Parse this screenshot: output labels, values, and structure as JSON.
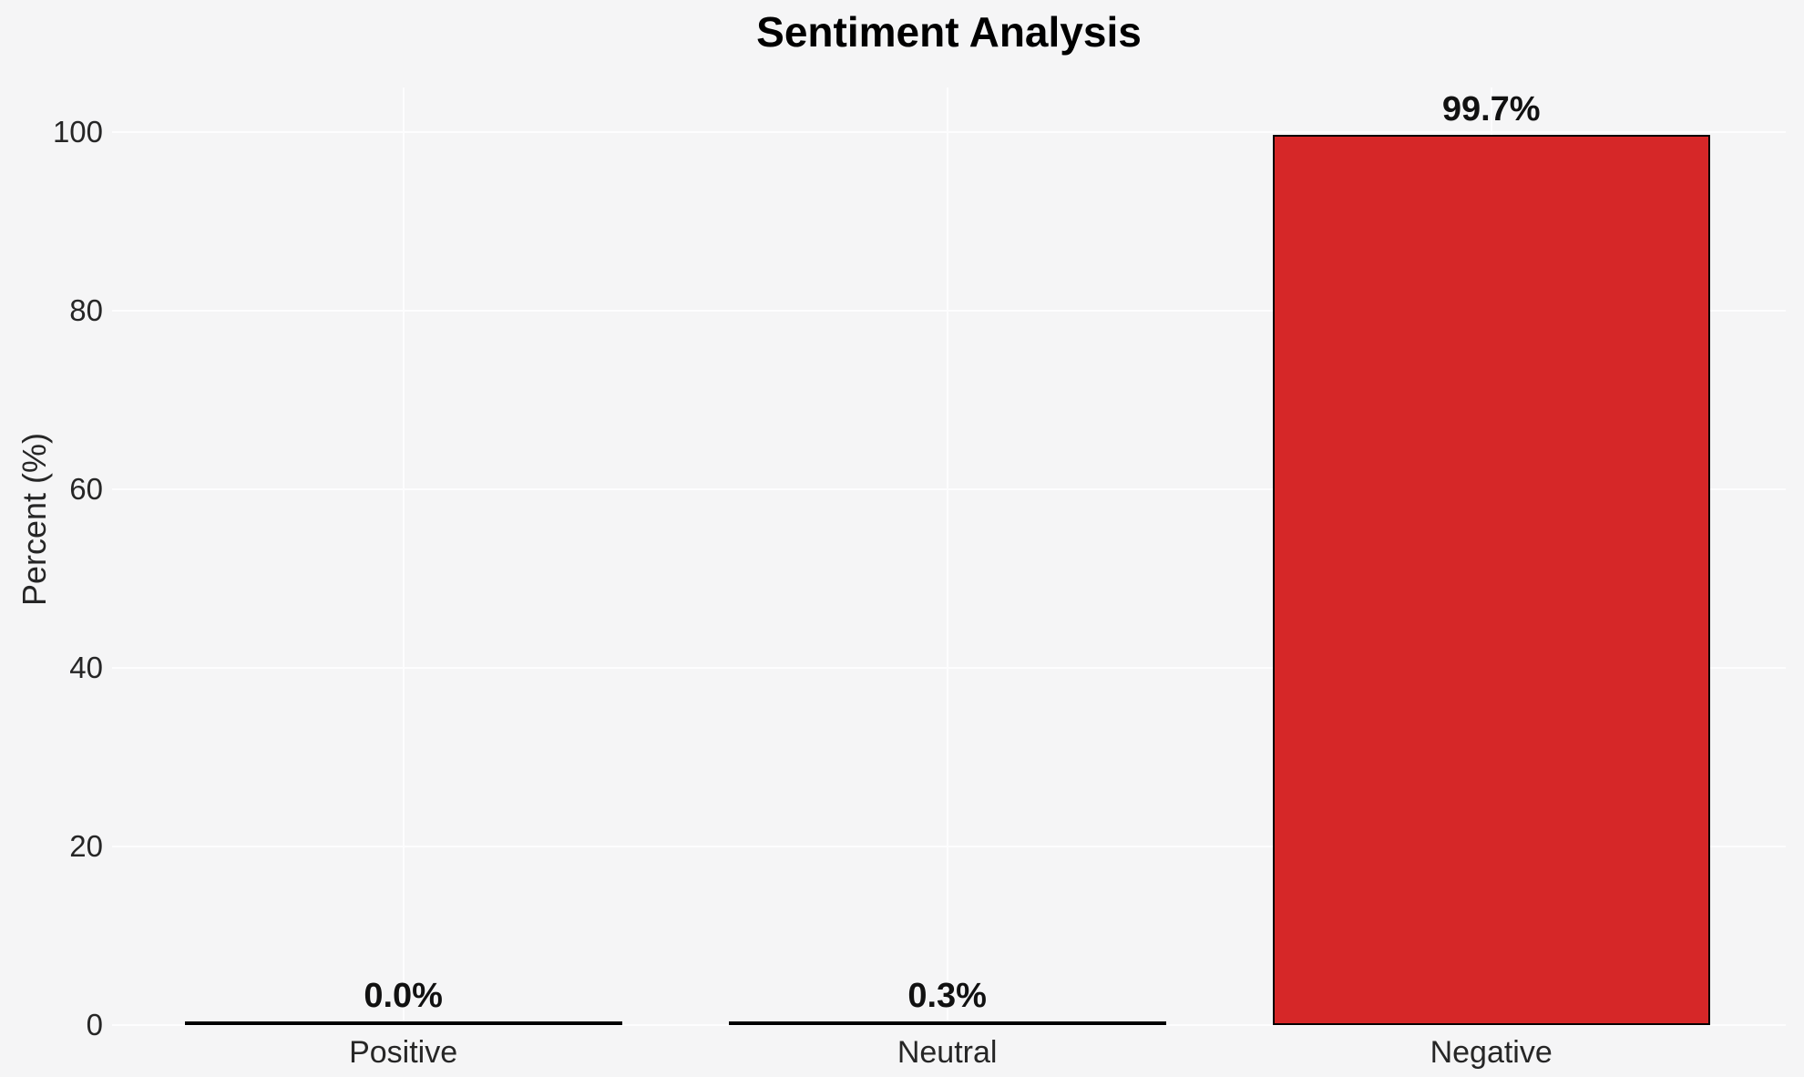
{
  "title": "Sentiment Analysis",
  "colors": {
    "background": "#f5f5f6",
    "gridline": "#fdfdfe",
    "bar_fill": "#d62728",
    "bar_edge": "#000000",
    "title_text": "#000000",
    "value_label_text": "#111111",
    "tick_text": "#262626"
  },
  "chart_data": {
    "type": "bar",
    "title": "Sentiment Analysis",
    "xlabel": "",
    "ylabel": "Percent (%)",
    "categories": [
      "Positive",
      "Neutral",
      "Negative"
    ],
    "values": [
      0.0,
      0.3,
      99.7
    ],
    "value_labels": [
      "0.0%",
      "0.3%",
      "99.7%"
    ],
    "yticks": [
      0,
      20,
      40,
      60,
      80,
      100
    ],
    "ylim": [
      0,
      105
    ],
    "grid": true,
    "legend": false,
    "bar_color": "#d62728",
    "bar_edge_color": "#000000"
  }
}
